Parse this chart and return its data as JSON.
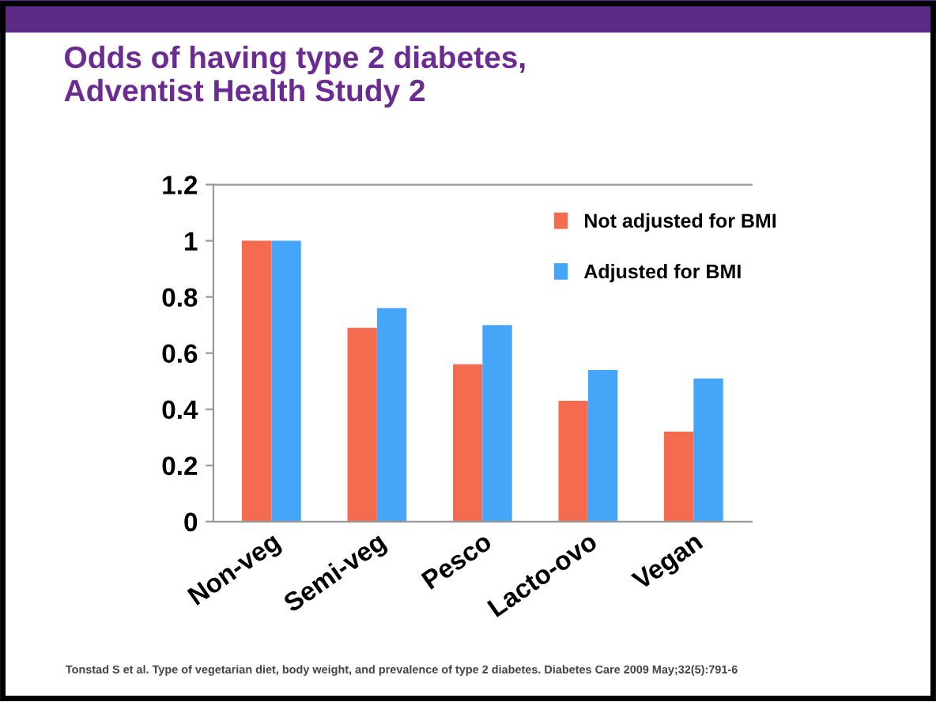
{
  "chart_data": {
    "type": "bar",
    "title": "Odds of having type 2 diabetes,\nAdventist Health Study 2",
    "categories": [
      "Non-veg",
      "Semi-veg",
      "Pesco",
      "Lacto-ovo",
      "Vegan"
    ],
    "series": [
      {
        "name": "Not adjusted for BMI",
        "color": "#f56b4f",
        "values": [
          1.0,
          0.69,
          0.56,
          0.43,
          0.32
        ]
      },
      {
        "name": "Adjusted for BMI",
        "color": "#45a5f8",
        "values": [
          1.0,
          0.76,
          0.7,
          0.54,
          0.51
        ]
      }
    ],
    "ylim": [
      0,
      1.2
    ],
    "yticks": [
      0,
      0.2,
      0.4,
      0.6,
      0.8,
      1,
      1.2
    ],
    "grid": false,
    "legend": "top right",
    "annotations": [
      "Tonstad S et al. Type of vegetarian diet, body weight, and prevalence of type 2 diabetes. Diabetes Care 2009 May;32(5):791-6"
    ]
  }
}
